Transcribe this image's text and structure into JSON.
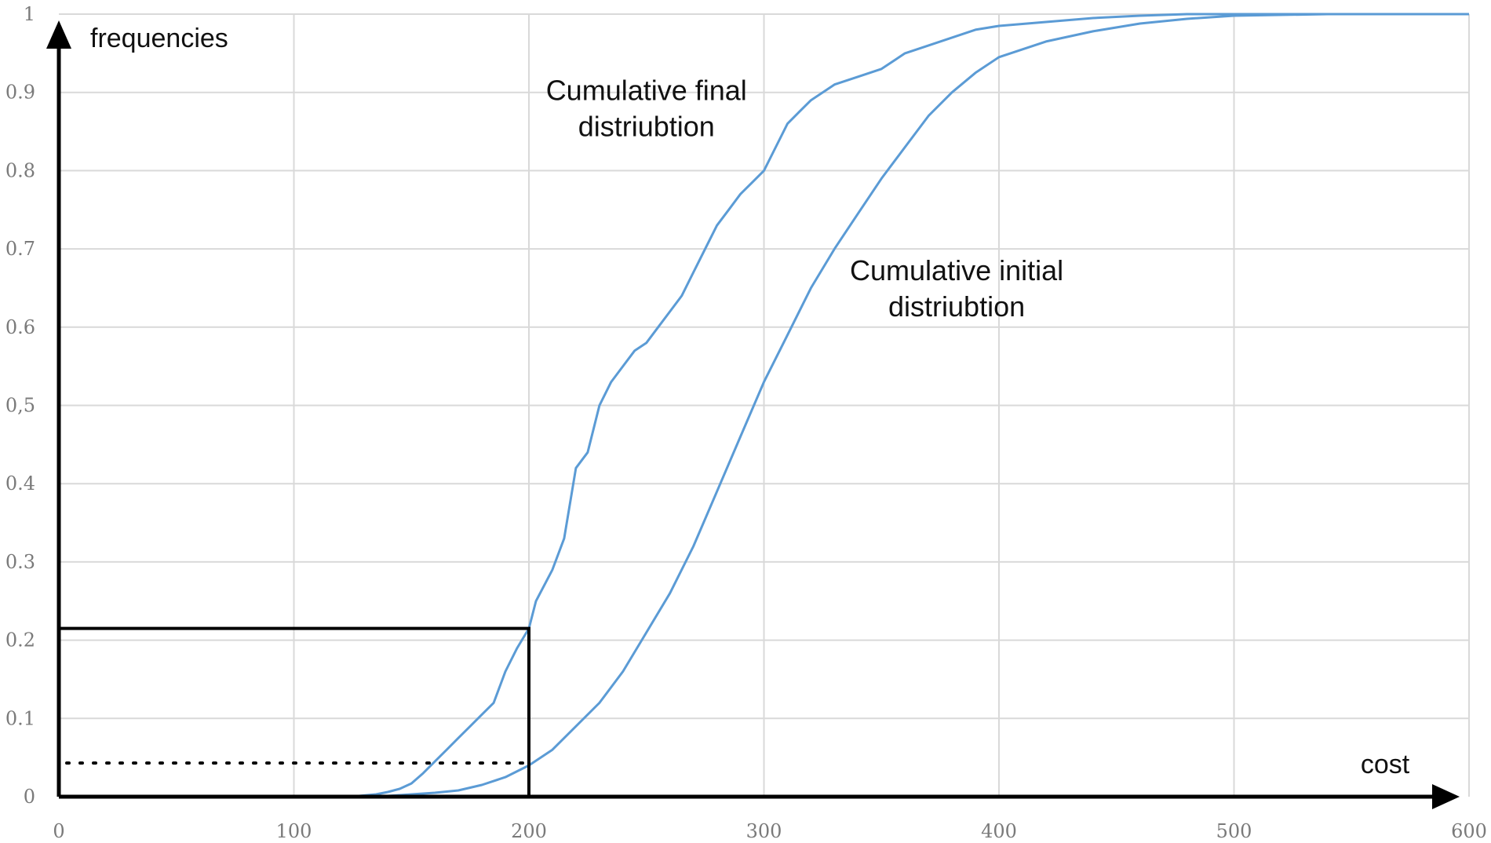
{
  "chart_data": {
    "type": "line",
    "xlabel": "cost",
    "ylabel": "frequencies",
    "xlim": [
      0,
      600
    ],
    "ylim": [
      0,
      1
    ],
    "x_ticks": [
      0,
      100,
      200,
      300,
      400,
      500,
      600
    ],
    "y_ticks": [
      "0",
      "0.1",
      "0.2",
      "0.3",
      "0.4",
      "0,5",
      "0.6",
      "0.7",
      "0.8",
      "0.9",
      "1"
    ],
    "grid": true,
    "colors": {
      "series": "#5b9bd5",
      "axes": "#000000",
      "grid": "#d9d9d9"
    },
    "series": [
      {
        "name": "",
        "label": "Cumulative final distriubtion",
        "points": [
          [
            124,
            0
          ],
          [
            135,
            0.003
          ],
          [
            140,
            0.006
          ],
          [
            145,
            0.01
          ],
          [
            150,
            0.017
          ],
          [
            155,
            0.03
          ],
          [
            160,
            0.045
          ],
          [
            165,
            0.06
          ],
          [
            170,
            0.075
          ],
          [
            175,
            0.09
          ],
          [
            180,
            0.105
          ],
          [
            185,
            0.12
          ],
          [
            190,
            0.16
          ],
          [
            195,
            0.19
          ],
          [
            200,
            0.215
          ],
          [
            203,
            0.25
          ],
          [
            210,
            0.29
          ],
          [
            215,
            0.33
          ],
          [
            220,
            0.42
          ],
          [
            225,
            0.44
          ],
          [
            230,
            0.5
          ],
          [
            235,
            0.53
          ],
          [
            240,
            0.55
          ],
          [
            245,
            0.57
          ],
          [
            250,
            0.58
          ],
          [
            255,
            0.6
          ],
          [
            260,
            0.62
          ],
          [
            265,
            0.64
          ],
          [
            270,
            0.67
          ],
          [
            275,
            0.7
          ],
          [
            280,
            0.73
          ],
          [
            285,
            0.75
          ],
          [
            290,
            0.77
          ],
          [
            295,
            0.785
          ],
          [
            300,
            0.8
          ],
          [
            305,
            0.83
          ],
          [
            310,
            0.86
          ],
          [
            315,
            0.875
          ],
          [
            320,
            0.89
          ],
          [
            325,
            0.9
          ],
          [
            330,
            0.91
          ],
          [
            340,
            0.92
          ],
          [
            350,
            0.93
          ],
          [
            360,
            0.95
          ],
          [
            370,
            0.96
          ],
          [
            380,
            0.97
          ],
          [
            390,
            0.98
          ],
          [
            400,
            0.985
          ],
          [
            420,
            0.99
          ],
          [
            440,
            0.995
          ],
          [
            460,
            0.998
          ],
          [
            480,
            1
          ],
          [
            600,
            1
          ]
        ]
      },
      {
        "name": "",
        "label": "Cumulative initial distriubtion",
        "points": [
          [
            124,
            0
          ],
          [
            140,
            0.001
          ],
          [
            160,
            0.005
          ],
          [
            170,
            0.008
          ],
          [
            180,
            0.015
          ],
          [
            190,
            0.025
          ],
          [
            200,
            0.04
          ],
          [
            210,
            0.06
          ],
          [
            220,
            0.09
          ],
          [
            230,
            0.12
          ],
          [
            240,
            0.16
          ],
          [
            250,
            0.21
          ],
          [
            260,
            0.26
          ],
          [
            270,
            0.32
          ],
          [
            280,
            0.39
          ],
          [
            290,
            0.46
          ],
          [
            300,
            0.53
          ],
          [
            310,
            0.59
          ],
          [
            320,
            0.65
          ],
          [
            330,
            0.7
          ],
          [
            340,
            0.745
          ],
          [
            350,
            0.79
          ],
          [
            360,
            0.83
          ],
          [
            370,
            0.87
          ],
          [
            380,
            0.9
          ],
          [
            390,
            0.925
          ],
          [
            400,
            0.945
          ],
          [
            420,
            0.965
          ],
          [
            440,
            0.978
          ],
          [
            460,
            0.988
          ],
          [
            480,
            0.994
          ],
          [
            500,
            0.998
          ],
          [
            540,
            1
          ],
          [
            600,
            1
          ]
        ]
      }
    ],
    "annotations": [
      {
        "lines": [
          "Cumulative final",
          "distriubtion"
        ],
        "x": 250,
        "y": 0.89
      },
      {
        "lines": [
          "Cumulative initial",
          "distriubtion"
        ],
        "x": 382,
        "y": 0.66
      }
    ],
    "guide_box": {
      "x": 200,
      "y": 0.215
    },
    "dotted_line": {
      "x": 200,
      "y": 0.043
    }
  }
}
